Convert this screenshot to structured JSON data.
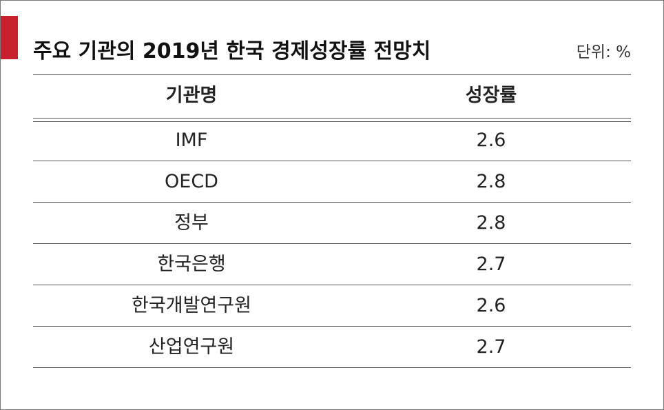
{
  "header": {
    "title": "주요 기관의 2019년 한국 경제성장률 전망치",
    "unit": "단위: %"
  },
  "table": {
    "columns": [
      "기관명",
      "성장률"
    ],
    "rows": [
      [
        "IMF",
        "2.6"
      ],
      [
        "OECD",
        "2.8"
      ],
      [
        "정부",
        "2.8"
      ],
      [
        "한국은행",
        "2.7"
      ],
      [
        "한국개발연구원",
        "2.6"
      ],
      [
        "산업연구원",
        "2.7"
      ]
    ]
  }
}
